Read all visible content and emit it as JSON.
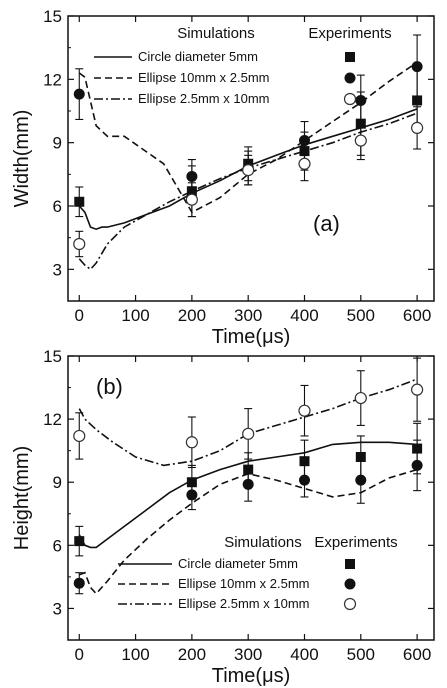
{
  "chart_data": [
    {
      "type": "line",
      "panel_label": "(a)",
      "xlabel": "Time(μs)",
      "ylabel": "Width(mm)",
      "xlim": [
        -20,
        630
      ],
      "ylim": [
        1.5,
        15
      ],
      "xticks": [
        0,
        100,
        200,
        300,
        400,
        500,
        600
      ],
      "yticks": [
        3,
        6,
        9,
        12,
        15
      ],
      "legend": {
        "position": "top",
        "simulations_title": "Simulations",
        "experiments_title": "Experiments"
      },
      "series": [
        {
          "name": "Circle diameter 5mm",
          "dash": "solid",
          "marker": "square",
          "simulation": [
            [
              0,
              6.0
            ],
            [
              10,
              5.7
            ],
            [
              20,
              5.0
            ],
            [
              30,
              4.9
            ],
            [
              40,
              5.0
            ],
            [
              50,
              5.0
            ],
            [
              80,
              5.2
            ],
            [
              120,
              5.6
            ],
            [
              160,
              6.0
            ],
            [
              200,
              6.6
            ],
            [
              250,
              7.2
            ],
            [
              300,
              7.9
            ],
            [
              350,
              8.4
            ],
            [
              400,
              8.9
            ],
            [
              450,
              9.3
            ],
            [
              500,
              9.7
            ],
            [
              550,
              10.1
            ],
            [
              600,
              10.6
            ]
          ],
          "experiment": [
            [
              0,
              6.2
            ],
            [
              200,
              6.7
            ],
            [
              300,
              8.0
            ],
            [
              400,
              8.6
            ],
            [
              500,
              9.9
            ],
            [
              600,
              11.0
            ]
          ],
          "error": [
            [
              0,
              0.7
            ],
            [
              200,
              1.2
            ],
            [
              300,
              0.8
            ],
            [
              400,
              0.9
            ],
            [
              500,
              1.5
            ],
            [
              600,
              1.5
            ]
          ]
        },
        {
          "name": "Ellipse 10mm x 2.5mm",
          "dash": "dashed",
          "marker": "circle-filled",
          "simulation": [
            [
              0,
              12.3
            ],
            [
              10,
              12.1
            ],
            [
              30,
              9.8
            ],
            [
              50,
              9.3
            ],
            [
              80,
              9.3
            ],
            [
              150,
              8.0
            ],
            [
              200,
              5.7
            ],
            [
              250,
              6.4
            ],
            [
              300,
              7.5
            ],
            [
              350,
              8.2
            ],
            [
              400,
              9.1
            ],
            [
              450,
              10.0
            ],
            [
              500,
              10.9
            ],
            [
              550,
              11.9
            ],
            [
              600,
              12.8
            ]
          ],
          "experiment": [
            [
              0,
              11.3
            ],
            [
              200,
              7.4
            ],
            [
              300,
              7.8
            ],
            [
              400,
              9.1
            ],
            [
              500,
              11.0
            ],
            [
              600,
              12.6
            ]
          ],
          "error": [
            [
              0,
              1.2
            ],
            [
              200,
              0.8
            ],
            [
              300,
              0.8
            ],
            [
              400,
              0.9
            ],
            [
              500,
              1.2
            ],
            [
              600,
              1.5
            ]
          ]
        },
        {
          "name": "Ellipse 2.5mm x 10mm",
          "dash": "dash-dot",
          "marker": "circle-open",
          "simulation": [
            [
              0,
              3.5
            ],
            [
              10,
              3.2
            ],
            [
              20,
              3.0
            ],
            [
              30,
              3.3
            ],
            [
              50,
              4.2
            ],
            [
              80,
              5.0
            ],
            [
              120,
              5.6
            ],
            [
              160,
              6.2
            ],
            [
              200,
              6.7
            ],
            [
              250,
              7.3
            ],
            [
              300,
              7.8
            ],
            [
              350,
              8.2
            ],
            [
              400,
              8.6
            ],
            [
              450,
              9.0
            ],
            [
              500,
              9.5
            ],
            [
              550,
              9.9
            ],
            [
              600,
              10.4
            ]
          ],
          "experiment": [
            [
              0,
              4.2
            ],
            [
              200,
              6.3
            ],
            [
              300,
              7.7
            ],
            [
              400,
              8.0
            ],
            [
              500,
              9.1
            ],
            [
              600,
              9.7
            ]
          ],
          "error": [
            [
              0,
              0.6
            ],
            [
              200,
              0.8
            ],
            [
              300,
              0.7
            ],
            [
              400,
              0.8
            ],
            [
              500,
              0.9
            ],
            [
              600,
              1.0
            ]
          ]
        }
      ]
    },
    {
      "type": "line",
      "panel_label": "(b)",
      "xlabel": "Time(μs)",
      "ylabel": "Height(mm)",
      "xlim": [
        -20,
        630
      ],
      "ylim": [
        1.5,
        15
      ],
      "xticks": [
        0,
        100,
        200,
        300,
        400,
        500,
        600
      ],
      "yticks": [
        3,
        6,
        9,
        12,
        15
      ],
      "legend": {
        "position": "bottom-right",
        "simulations_title": "Simulations",
        "experiments_title": "Experiments"
      },
      "series": [
        {
          "name": "Circle diameter 5mm",
          "dash": "solid",
          "marker": "square",
          "simulation": [
            [
              0,
              6.5
            ],
            [
              10,
              6.0
            ],
            [
              20,
              5.9
            ],
            [
              30,
              5.9
            ],
            [
              50,
              6.3
            ],
            [
              80,
              6.9
            ],
            [
              120,
              7.7
            ],
            [
              160,
              8.5
            ],
            [
              200,
              9.1
            ],
            [
              250,
              9.6
            ],
            [
              300,
              10.0
            ],
            [
              350,
              10.2
            ],
            [
              400,
              10.4
            ],
            [
              450,
              10.8
            ],
            [
              500,
              10.9
            ],
            [
              550,
              10.9
            ],
            [
              600,
              10.8
            ]
          ],
          "experiment": [
            [
              0,
              6.2
            ],
            [
              200,
              9.0
            ],
            [
              300,
              9.6
            ],
            [
              400,
              10.0
            ],
            [
              500,
              10.2
            ],
            [
              600,
              10.6
            ]
          ],
          "error": [
            [
              0,
              0.7
            ],
            [
              200,
              0.8
            ],
            [
              300,
              0.8
            ],
            [
              400,
              1.0
            ],
            [
              500,
              1.0
            ],
            [
              600,
              1.2
            ]
          ]
        },
        {
          "name": "Ellipse 10mm x 2.5mm",
          "dash": "dashed",
          "marker": "circle-filled",
          "simulation": [
            [
              0,
              4.6
            ],
            [
              10,
              4.7
            ],
            [
              20,
              4.0
            ],
            [
              30,
              3.7
            ],
            [
              50,
              4.3
            ],
            [
              80,
              5.3
            ],
            [
              120,
              6.3
            ],
            [
              160,
              7.2
            ],
            [
              200,
              8.0
            ],
            [
              250,
              8.9
            ],
            [
              300,
              9.4
            ],
            [
              350,
              9.1
            ],
            [
              400,
              8.7
            ],
            [
              450,
              8.3
            ],
            [
              500,
              8.5
            ],
            [
              550,
              9.2
            ],
            [
              600,
              9.6
            ]
          ],
          "experiment": [
            [
              0,
              4.2
            ],
            [
              200,
              8.4
            ],
            [
              300,
              8.9
            ],
            [
              400,
              9.1
            ],
            [
              500,
              9.1
            ],
            [
              600,
              9.8
            ]
          ],
          "error": [
            [
              0,
              0.5
            ],
            [
              200,
              0.7
            ],
            [
              300,
              0.8
            ],
            [
              400,
              0.8
            ],
            [
              500,
              1.1
            ],
            [
              600,
              1.2
            ]
          ]
        },
        {
          "name": "Ellipse 2.5mm x 10mm",
          "dash": "dash-dot",
          "marker": "circle-open",
          "simulation": [
            [
              0,
              12.5
            ],
            [
              10,
              12.0
            ],
            [
              30,
              11.5
            ],
            [
              60,
              10.9
            ],
            [
              100,
              10.2
            ],
            [
              150,
              9.8
            ],
            [
              200,
              10.0
            ],
            [
              250,
              10.5
            ],
            [
              300,
              11.3
            ],
            [
              350,
              11.7
            ],
            [
              400,
              12.1
            ],
            [
              450,
              12.5
            ],
            [
              500,
              13.0
            ],
            [
              550,
              13.4
            ],
            [
              600,
              13.9
            ]
          ],
          "experiment": [
            [
              0,
              11.2
            ],
            [
              200,
              10.9
            ],
            [
              300,
              11.3
            ],
            [
              400,
              12.4
            ],
            [
              500,
              13.0
            ],
            [
              600,
              13.4
            ]
          ],
          "error": [
            [
              0,
              1.1
            ],
            [
              200,
              1.2
            ],
            [
              300,
              1.2
            ],
            [
              400,
              1.2
            ],
            [
              500,
              1.3
            ],
            [
              600,
              1.5
            ]
          ]
        }
      ]
    }
  ]
}
